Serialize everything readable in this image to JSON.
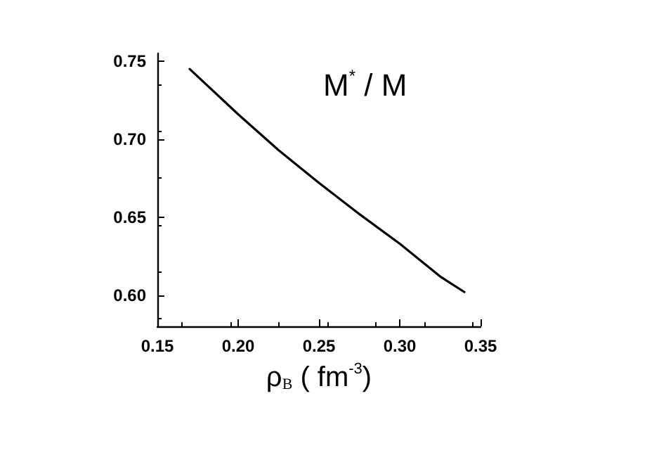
{
  "chart_data": {
    "type": "line",
    "x": [
      0.17,
      0.2,
      0.225,
      0.25,
      0.275,
      0.3,
      0.325,
      0.34
    ],
    "series": [
      {
        "color": "#000000",
        "values": [
          0.745,
          0.716,
          0.693,
          0.672,
          0.652,
          0.633,
          0.612,
          0.602
        ]
      }
    ],
    "xlabel": "ρ$_{B}$ ( fm$^{-3}$)",
    "annotations": [
      "M$^{*}$ / M"
    ],
    "xlim": [
      0.15,
      0.35
    ],
    "xticks": [
      0.15,
      {
        "value": 0.2,
        "label": "0.20"
      },
      0.25,
      {
        "value": 0.3,
        "label": "0.30"
      },
      0.35
    ],
    "ylim": [
      0.58,
      0.755
    ],
    "yticks": [
      {
        "value": 0.6,
        "label": "0.60"
      },
      0.65,
      {
        "value": 0.7,
        "label": "0.70"
      },
      0.75
    ],
    "grid": false,
    "marker": "none",
    "line_style": "solid"
  }
}
